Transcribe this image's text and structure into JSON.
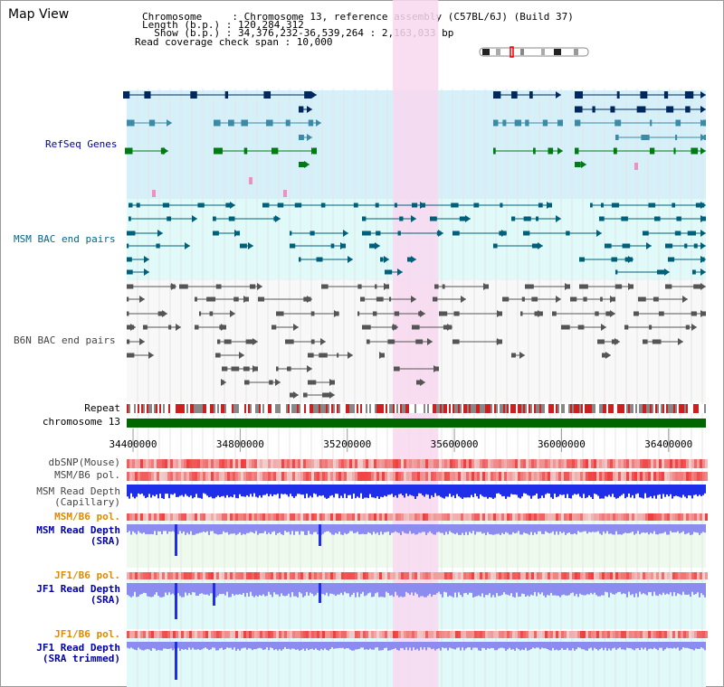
{
  "title": "Map View",
  "info": {
    "chromosome": "Chromosome     : Chromosome 13, reference assembly (C57BL/6J) (Build 37)",
    "length": "Length (b.p.) : 120,284,312",
    "show": "  Show (b.p.) : 34,376,232-36,539,264 : 2,163,033 bp",
    "span": "Read coverage check span : 10,000"
  },
  "tracks": {
    "refseq": "RefSeq Genes",
    "msm_bac": "MSM BAC end pairs",
    "b6n_bac": "B6N BAC end pairs",
    "repeat": "Repeat",
    "chromosome": "chromosome 13",
    "dbsnp": "dbSNP(Mouse)",
    "msm_b6_pol_1": "MSM/B6 pol.",
    "msm_depth_cap_1": "MSM Read Depth",
    "msm_depth_cap_2": "(Capillary)",
    "msm_b6_pol_2": "MSM/B6 pol.",
    "msm_depth_sra_1": "MSM Read Depth",
    "msm_depth_sra_2": "(SRA)",
    "jf1_b6_pol_1": "JF1/B6 pol.",
    "jf1_depth_sra_1": "JF1 Read Depth",
    "jf1_depth_sra_2": "(SRA)",
    "jf1_b6_pol_2": "JF1/B6 pol.",
    "jf1_depth_trim_1": "JF1 Read Depth",
    "jf1_depth_trim_2": "(SRA trimmed)"
  },
  "axis": {
    "ticks": [
      "34400000",
      "34800000",
      "35200000",
      "35600000",
      "36000000",
      "36400000"
    ],
    "tick_values": [
      34400000,
      34800000,
      35200000,
      35600000,
      36000000,
      36400000
    ],
    "start": 34376232,
    "end": 36539264
  },
  "highlight_range": [
    35370000,
    35540000
  ],
  "colors": {
    "refseq_bg": "#d6f0fa",
    "msm_bg": "#e0fafa",
    "b6n_bg": "#f8f8f8",
    "highlight": "#f8d8f0",
    "chromosome": "#006600",
    "gene_dark": "#00285e",
    "gene_teal": "#3c8aa6",
    "gene_green": "#007a14",
    "msm_bac": "#00607a",
    "b6n_bac": "#555555",
    "depth_blue": "#1f2ee8",
    "depth_light": "#8c8cf0",
    "pol_red": "#f04040",
    "pol_pink": "#f8b0b0",
    "sra_bg": "#eefaee",
    "jf1_bg": "#e0fafa"
  }
}
